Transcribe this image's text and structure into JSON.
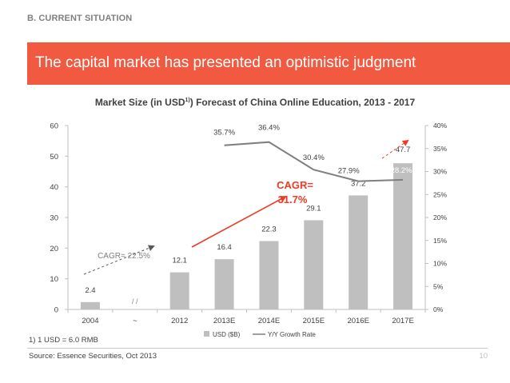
{
  "header": {
    "section": "B. CURRENT SITUATION",
    "title": "The capital market has presented an optimistic judgment"
  },
  "chart_title": {
    "prefix": "Market Size (in USD",
    "sup": "1)",
    "suffix": ") Forecast of China Online Education, 2013 - 2017"
  },
  "chart_data": {
    "type": "bar",
    "categories": [
      "2004",
      "~",
      "2012",
      "2013E",
      "2014E",
      "2015E",
      "2016E",
      "2017E"
    ],
    "series": [
      {
        "name": "USD ($B)",
        "type": "bar",
        "axis": "left",
        "values": [
          2.4,
          null,
          12.1,
          16.4,
          22.3,
          29.1,
          37.2,
          47.7
        ],
        "labels": [
          "2.4",
          "",
          "12.1",
          "16.4",
          "22.3",
          "29.1",
          "37.2",
          "47.7"
        ]
      },
      {
        "name": "Y/Y Growth Rate",
        "type": "line",
        "axis": "right",
        "values": [
          null,
          null,
          null,
          35.7,
          36.4,
          30.4,
          27.9,
          28.2
        ],
        "labels": [
          "",
          "",
          "",
          "35.7%",
          "36.4%",
          "30.4%",
          "27.9%",
          "28.2%"
        ]
      }
    ],
    "y_left": {
      "min": 0,
      "max": 60,
      "ticks": [
        "0",
        "10",
        "20",
        "30",
        "40",
        "50",
        "60"
      ]
    },
    "y_right": {
      "min": 0,
      "max": 40,
      "ticks": [
        "0%",
        "5%",
        "10%",
        "15%",
        "20%",
        "25%",
        "30%",
        "35%",
        "40%"
      ]
    },
    "break_mark": "/ /",
    "annotations": {
      "cagr_early": "CAGR= 22.5%",
      "cagr_late_line1": "CAGR=",
      "cagr_late_line2": "31.7%"
    },
    "legend_position": "bottom",
    "colors": {
      "bar": "#bfbfbf",
      "line": "#7f7f7f",
      "accent": "#ee3b24",
      "axis": "#bfbfbf"
    }
  },
  "footnote": "1) 1 USD = 6.0 RMB",
  "source": "Source: Essence Securities, Oct 2013",
  "page_number": "10"
}
